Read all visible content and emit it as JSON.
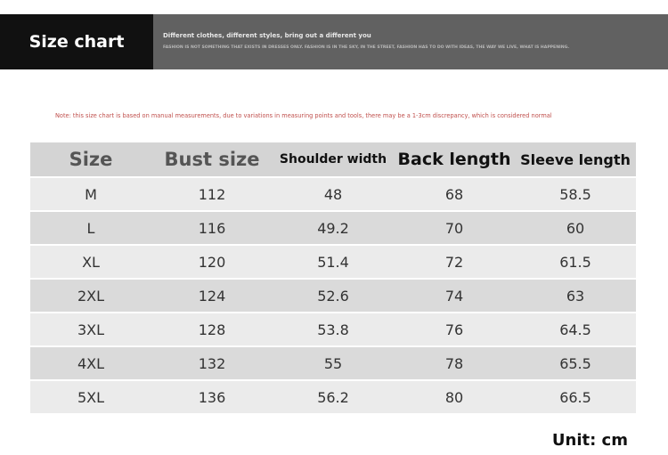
{
  "banner": {
    "title": "Size chart",
    "tagline": "Different clothes, different styles, bring out a different you",
    "subtagline": "FASHION IS NOT SOMETHING THAT EXISTS IN DRESSES ONLY. FASHION IS IN THE SKY, IN THE STREET, FASHION HAS TO DO WITH IDEAS, THE WAY WE LIVE, WHAT IS HAPPENING."
  },
  "note": "Note: this size chart is based on manual measurements, due to variations in measuring points and tools, there may be a 1-3cm discrepancy, which is considered normal",
  "table": {
    "headers": [
      "Size",
      "Bust size",
      "Shoulder width",
      "Back length",
      "Sleeve length"
    ],
    "rows": [
      [
        "M",
        "112",
        "48",
        "68",
        "58.5"
      ],
      [
        "L",
        "116",
        "49.2",
        "70",
        "60"
      ],
      [
        "XL",
        "120",
        "51.4",
        "72",
        "61.5"
      ],
      [
        "2XL",
        "124",
        "52.6",
        "74",
        "63"
      ],
      [
        "3XL",
        "128",
        "53.8",
        "76",
        "64.5"
      ],
      [
        "4XL",
        "132",
        "55",
        "78",
        "65.5"
      ],
      [
        "5XL",
        "136",
        "56.2",
        "80",
        "66.5"
      ]
    ]
  },
  "unit": "Unit: cm",
  "colors": {
    "note": "#c0504d",
    "banner_dark": "#111111",
    "banner_gray": "#616161"
  }
}
